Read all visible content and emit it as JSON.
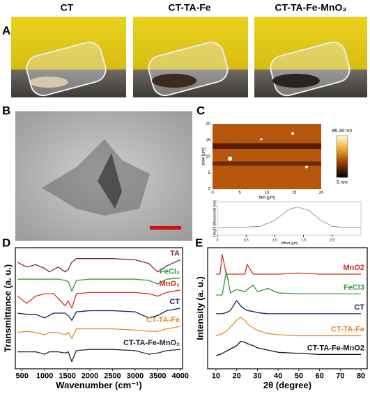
{
  "panels": {
    "A": {
      "label": "A",
      "titles": [
        "CT",
        "CT-TA-Fe",
        "CT-TA-Fe-MnO₂"
      ]
    },
    "B": {
      "label": "B"
    },
    "C": {
      "label": "C",
      "colorbar_max": "96.26 nm",
      "colorbar_min": "0 nm",
      "xlabel": "fast [µm]",
      "ylabel": "slow [µm]",
      "xticks": [
        0,
        5,
        10,
        15,
        20
      ],
      "yticks": [
        0,
        5,
        10,
        15,
        20
      ]
    },
    "D": {
      "label": "D"
    },
    "E": {
      "label": "E"
    }
  },
  "chart_data": [
    {
      "type": "line",
      "xlabel": "Wavenumber (cm⁻¹)",
      "ylabel": "Transmittance (a. u.)",
      "x": [
        400,
        600,
        800,
        1000,
        1100,
        1200,
        1300,
        1450,
        1520,
        1600,
        1700,
        2000,
        2500,
        3000,
        3300,
        3500,
        3700,
        4000
      ],
      "xlim": [
        350,
        4050
      ],
      "xticks": [
        500,
        1000,
        1500,
        2000,
        2500,
        3000,
        3500,
        4000
      ],
      "ylim": [
        0,
        100
      ],
      "series": [
        {
          "name": "TA",
          "color": "#7b2a4a",
          "values": [
            88,
            84,
            86,
            83,
            80,
            82,
            84,
            80,
            82,
            88,
            91,
            91,
            91,
            90,
            87,
            80,
            85,
            90
          ]
        },
        {
          "name": "FeCl₃",
          "color": "#2e9a3a",
          "values": [
            74,
            74,
            74,
            74,
            74,
            74,
            74,
            73,
            72,
            64,
            73,
            74,
            74,
            74,
            73,
            70,
            74,
            75
          ]
        },
        {
          "name": "MnO₂",
          "color": "#d2301e",
          "values": [
            60,
            54,
            60,
            62,
            62,
            62,
            58,
            52,
            56,
            50,
            62,
            63,
            63,
            63,
            62,
            60,
            63,
            65
          ]
        },
        {
          "name": "CT",
          "color": "#1c1f5a",
          "values": [
            46,
            45,
            45,
            42,
            44,
            46,
            46,
            46,
            44,
            40,
            47,
            48,
            48,
            47,
            42,
            44,
            48,
            50
          ]
        },
        {
          "name": "CT-TA-Fe",
          "color": "#e8892f",
          "values": [
            30,
            31,
            30,
            28,
            30,
            30,
            30,
            28,
            30,
            25,
            33,
            33,
            33,
            32,
            31,
            31,
            33,
            35
          ]
        },
        {
          "name": "CT-TA-Fe-MnO₂",
          "color": "#2a2438",
          "values": [
            14,
            14,
            14,
            12,
            14,
            14,
            14,
            13,
            14,
            6,
            15,
            16,
            16,
            15,
            12,
            13,
            15,
            16
          ]
        }
      ]
    },
    {
      "type": "line",
      "xlabel": "2θ (degree)",
      "ylabel": "Intensity (a. u.)",
      "x": [
        10,
        12,
        13,
        15,
        17,
        20,
        22,
        24,
        25,
        28,
        30,
        35,
        40,
        50,
        60,
        70,
        80
      ],
      "xlim": [
        6,
        83
      ],
      "xticks": [
        10,
        20,
        30,
        40,
        50,
        60,
        70,
        80
      ],
      "ylim": [
        0,
        110
      ],
      "series": [
        {
          "name": "MnO2",
          "color": "#d2301e",
          "values": [
            86,
            86,
            104,
            86,
            86,
            86,
            86,
            86,
            95,
            86,
            86,
            86,
            86,
            87,
            86,
            86,
            86
          ]
        },
        {
          "name": "FeCl3",
          "color": "#2e9a3a",
          "values": [
            67,
            67,
            67,
            88,
            69,
            72,
            71,
            70,
            72,
            76,
            70,
            73,
            69,
            68,
            68,
            68,
            68
          ]
        },
        {
          "name": "CT",
          "color": "#1c1f5a",
          "values": [
            50,
            50,
            50,
            51,
            53,
            62,
            57,
            54,
            53,
            52,
            51,
            50,
            50,
            50,
            50,
            50,
            50
          ]
        },
        {
          "name": "CT-TA-Fe",
          "color": "#e8892f",
          "values": [
            30,
            31,
            32,
            34,
            38,
            44,
            47,
            44,
            41,
            37,
            35,
            32,
            31,
            30,
            30,
            30,
            30
          ]
        },
        {
          "name": "CT-TA-Fe-MnO2",
          "color": "#111111",
          "values": [
            12,
            13,
            14,
            16,
            18,
            21,
            25,
            24,
            23,
            21,
            19,
            17,
            15,
            14,
            13,
            13,
            13
          ]
        }
      ]
    },
    {
      "type": "line",
      "xlabel": "Offset [µm]",
      "ylabel": "Height (Measured) [nm]",
      "x": [
        0,
        0.25,
        0.5,
        0.75,
        1.0,
        1.25,
        1.4,
        1.6,
        1.8,
        2.0,
        2.25,
        2.5
      ],
      "xlim": [
        0,
        2.5
      ],
      "xticks": [
        0,
        0.5,
        {
          "value": 1,
          "label": "1.0"
        },
        1.5,
        {
          "value": 2,
          "label": "2.0"
        }
      ],
      "ylim": [
        0,
        45
      ],
      "series": [
        {
          "name": null,
          "color": "#7a7fb0",
          "values": [
            10,
            10,
            11,
            12,
            20,
            35,
            38,
            33,
            20,
            12,
            10,
            10
          ]
        }
      ]
    }
  ]
}
